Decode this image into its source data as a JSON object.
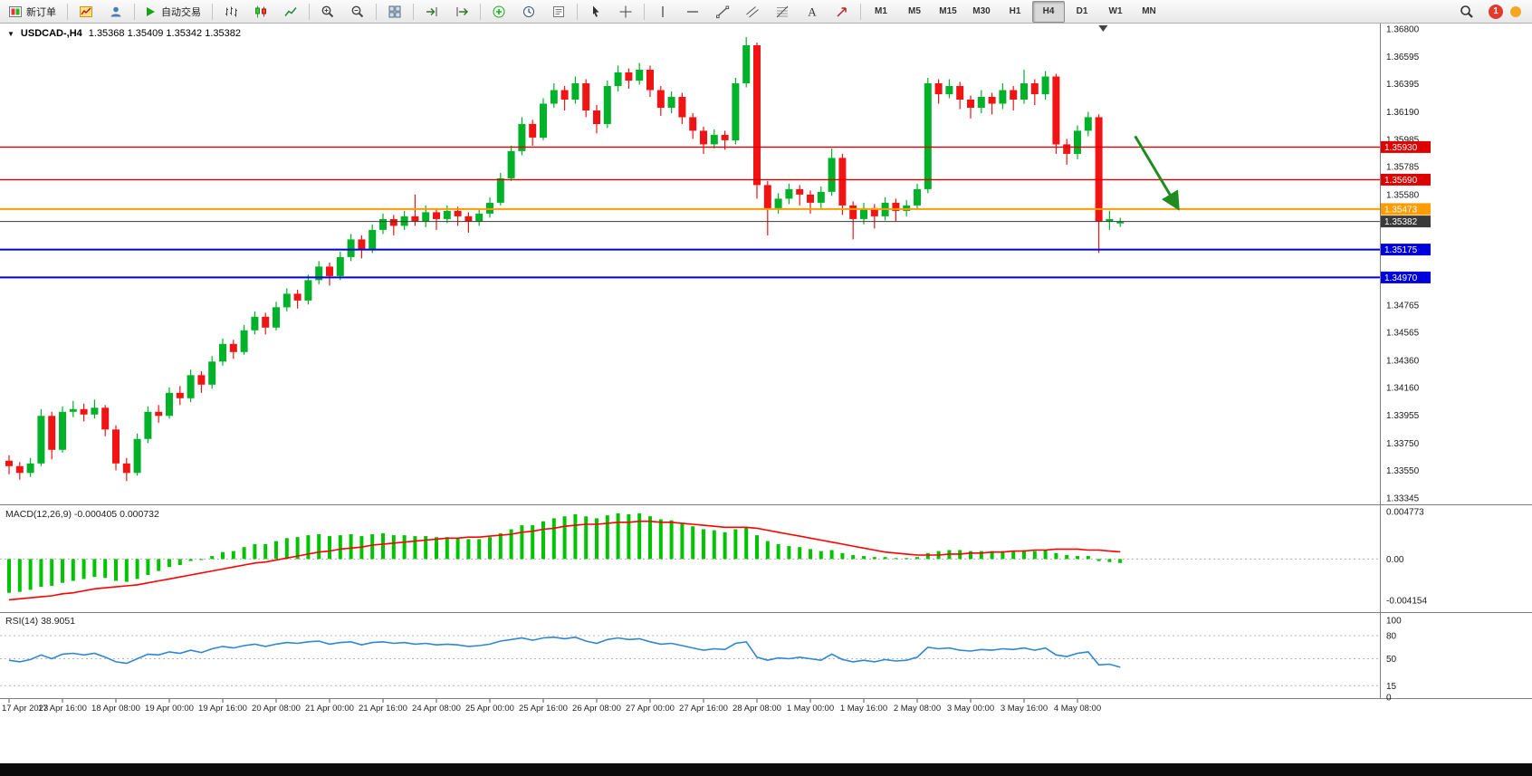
{
  "toolbar": {
    "groups": [
      [
        {
          "name": "new-order-button",
          "icon": "new-order",
          "label": "新订单"
        }
      ],
      [
        {
          "name": "new-chart-button",
          "icon": "new-chart"
        },
        {
          "name": "profiles-button",
          "icon": "profiles"
        }
      ],
      [
        {
          "name": "autotrading-button",
          "icon": "play",
          "label": "自动交易"
        }
      ],
      [
        {
          "name": "bar-chart-mode-button",
          "icon": "bars"
        },
        {
          "name": "candlestick-mode-button",
          "icon": "candles"
        },
        {
          "name": "line-chart-mode-button",
          "icon": "line"
        }
      ],
      [
        {
          "name": "zoom-in-button",
          "icon": "zoom-in"
        },
        {
          "name": "zoom-out-button",
          "icon": "zoom-out"
        }
      ],
      [
        {
          "name": "tile-windows-button",
          "icon": "tile"
        }
      ],
      [
        {
          "name": "auto-scroll-button",
          "icon": "autoscroll"
        },
        {
          "name": "chart-shift-button",
          "icon": "shift"
        }
      ],
      [
        {
          "name": "indicators-button",
          "icon": "indicators"
        },
        {
          "name": "periods-button",
          "icon": "clock"
        },
        {
          "name": "templates-button",
          "icon": "templates"
        }
      ],
      [
        {
          "name": "cursor-button",
          "icon": "cursor"
        },
        {
          "name": "crosshair-button",
          "icon": "crosshair"
        }
      ],
      [
        {
          "name": "vertical-line-button",
          "icon": "vline"
        },
        {
          "name": "horizontal-line-button",
          "icon": "hline"
        },
        {
          "name": "trendline-button",
          "icon": "trendline"
        },
        {
          "name": "channel-button",
          "icon": "channel"
        },
        {
          "name": "fibonacci-button",
          "icon": "fibo"
        },
        {
          "name": "text-tool-button",
          "icon": "text"
        },
        {
          "name": "arrows-tool-button",
          "icon": "arrows"
        }
      ]
    ],
    "timeframes": [
      "M1",
      "M5",
      "M15",
      "M30",
      "H1",
      "H4",
      "D1",
      "W1",
      "MN"
    ],
    "active_timeframe": "H4",
    "notification_count": "1"
  },
  "chart_data": {
    "type": "candlestick",
    "symbol": "USDCAD",
    "period": "H4",
    "title": "USDCAD-,H4",
    "quote_line": "1.35368 1.35409 1.35342 1.35382",
    "quote": {
      "open": "1.35368",
      "high": "1.35409",
      "low": "1.35342",
      "close": "1.35382"
    },
    "candles_unit": "pips over base 1.33 (1 pip = 0.0001)",
    "price_base": 1.33,
    "pip": 0.0001,
    "y_axis": {
      "labels": [
        "1.36800",
        "1.36595",
        "1.36395",
        "1.36190",
        "1.35985",
        "1.35785",
        "1.35580",
        "1.35380",
        "1.35175",
        "1.34970",
        "1.34765",
        "1.34565",
        "1.34360",
        "1.34160",
        "1.33955",
        "1.33750",
        "1.33550",
        "1.33345"
      ]
    },
    "hlines": [
      {
        "name": "resistance-line-1",
        "price": 1.3593,
        "color": "#dd0000",
        "width": 1.4,
        "tag": "1.35930"
      },
      {
        "name": "resistance-line-2",
        "price": 1.3569,
        "color": "#dd0000",
        "width": 1.4,
        "tag": "1.35690"
      },
      {
        "name": "pivot-line",
        "price": 1.35473,
        "color": "#ff9c00",
        "width": 2,
        "tag": "1.35473"
      },
      {
        "name": "bid-price-line",
        "price": 1.35382,
        "color": "#3a3a3a",
        "width": 1,
        "tag": "1.35382"
      },
      {
        "name": "support-line-1",
        "price": 1.35175,
        "color": "#0000dd",
        "width": 2,
        "tag": "1.35175"
      },
      {
        "name": "support-line-2",
        "price": 1.3497,
        "color": "#0000dd",
        "width": 2,
        "tag": "1.34970"
      }
    ],
    "candles_pips": [
      [
        62,
        66,
        52,
        58
      ],
      [
        58,
        61,
        48,
        53
      ],
      [
        53,
        64,
        50,
        60
      ],
      [
        60,
        100,
        58,
        95
      ],
      [
        95,
        98,
        63,
        70
      ],
      [
        70,
        102,
        68,
        98
      ],
      [
        98,
        106,
        94,
        100
      ],
      [
        100,
        104,
        91,
        96
      ],
      [
        96,
        107,
        93,
        101
      ],
      [
        101,
        103,
        80,
        85
      ],
      [
        85,
        88,
        55,
        60
      ],
      [
        60,
        64,
        47,
        53
      ],
      [
        53,
        82,
        51,
        78
      ],
      [
        78,
        102,
        75,
        98
      ],
      [
        98,
        103,
        90,
        95
      ],
      [
        95,
        116,
        93,
        112
      ],
      [
        112,
        117,
        103,
        108
      ],
      [
        108,
        129,
        105,
        125
      ],
      [
        125,
        128,
        112,
        118
      ],
      [
        118,
        139,
        115,
        135
      ],
      [
        135,
        152,
        132,
        148
      ],
      [
        148,
        151,
        137,
        142
      ],
      [
        142,
        162,
        140,
        158
      ],
      [
        158,
        172,
        155,
        168
      ],
      [
        168,
        171,
        155,
        160
      ],
      [
        160,
        179,
        158,
        175
      ],
      [
        175,
        189,
        172,
        185
      ],
      [
        185,
        188,
        174,
        180
      ],
      [
        180,
        199,
        177,
        195
      ],
      [
        195,
        209,
        192,
        205
      ],
      [
        205,
        208,
        191,
        198
      ],
      [
        198,
        216,
        195,
        212
      ],
      [
        212,
        229,
        209,
        225
      ],
      [
        225,
        228,
        211,
        218
      ],
      [
        218,
        236,
        215,
        232
      ],
      [
        232,
        244,
        229,
        240
      ],
      [
        240,
        243,
        228,
        235
      ],
      [
        235,
        246,
        232,
        242
      ],
      [
        242,
        258,
        235,
        238
      ],
      [
        238,
        250,
        234,
        245
      ],
      [
        245,
        248,
        232,
        240
      ],
      [
        240,
        250,
        237,
        246
      ],
      [
        246,
        249,
        235,
        242
      ],
      [
        242,
        245,
        230,
        238
      ],
      [
        238,
        248,
        235,
        244
      ],
      [
        244,
        256,
        241,
        252
      ],
      [
        252,
        274,
        250,
        270
      ],
      [
        270,
        294,
        268,
        290
      ],
      [
        290,
        315,
        287,
        310
      ],
      [
        310,
        313,
        294,
        300
      ],
      [
        300,
        329,
        298,
        325
      ],
      [
        325,
        340,
        322,
        335
      ],
      [
        335,
        338,
        320,
        328
      ],
      [
        328,
        345,
        325,
        340
      ],
      [
        340,
        343,
        315,
        320
      ],
      [
        320,
        324,
        303,
        310
      ],
      [
        310,
        342,
        307,
        338
      ],
      [
        338,
        353,
        334,
        348
      ],
      [
        348,
        351,
        336,
        342
      ],
      [
        342,
        355,
        339,
        350
      ],
      [
        350,
        353,
        330,
        335
      ],
      [
        335,
        338,
        316,
        322
      ],
      [
        322,
        334,
        318,
        330
      ],
      [
        330,
        333,
        310,
        315
      ],
      [
        315,
        318,
        299,
        305
      ],
      [
        305,
        308,
        288,
        295
      ],
      [
        295,
        306,
        292,
        302
      ],
      [
        302,
        305,
        291,
        298
      ],
      [
        298,
        344,
        295,
        340
      ],
      [
        340,
        374,
        337,
        368
      ],
      [
        368,
        370,
        255,
        265
      ],
      [
        265,
        268,
        228,
        248
      ],
      [
        248,
        259,
        244,
        255
      ],
      [
        255,
        266,
        251,
        262
      ],
      [
        262,
        265,
        250,
        258
      ],
      [
        258,
        261,
        244,
        252
      ],
      [
        252,
        264,
        248,
        260
      ],
      [
        260,
        292,
        257,
        285
      ],
      [
        285,
        288,
        243,
        250
      ],
      [
        250,
        253,
        225,
        240
      ],
      [
        240,
        252,
        236,
        248
      ],
      [
        248,
        251,
        233,
        242
      ],
      [
        242,
        256,
        239,
        252
      ],
      [
        252,
        255,
        238,
        246
      ],
      [
        246,
        254,
        242,
        250
      ],
      [
        250,
        266,
        247,
        262
      ],
      [
        262,
        344,
        259,
        340
      ],
      [
        340,
        343,
        325,
        332
      ],
      [
        332,
        343,
        329,
        338
      ],
      [
        338,
        341,
        321,
        328
      ],
      [
        328,
        331,
        314,
        322
      ],
      [
        322,
        335,
        318,
        330
      ],
      [
        330,
        333,
        317,
        325
      ],
      [
        325,
        340,
        321,
        335
      ],
      [
        335,
        338,
        320,
        328
      ],
      [
        328,
        350,
        325,
        340
      ],
      [
        340,
        343,
        324,
        332
      ],
      [
        332,
        349,
        328,
        345
      ],
      [
        345,
        347,
        288,
        295
      ],
      [
        295,
        299,
        280,
        288
      ],
      [
        288,
        309,
        284,
        305
      ],
      [
        305,
        319,
        301,
        315
      ],
      [
        315,
        317,
        215,
        238
      ],
      [
        238,
        246,
        232,
        240
      ],
      [
        236.8,
        240.9,
        234.2,
        238.2
      ]
    ],
    "time_labels": [
      "17 Apr 2023",
      "17 Apr 16:00",
      "18 Apr 08:00",
      "19 Apr 00:00",
      "19 Apr 16:00",
      "20 Apr 08:00",
      "21 Apr 00:00",
      "21 Apr 16:00",
      "24 Apr 08:00",
      "25 Apr 00:00",
      "25 Apr 16:00",
      "26 Apr 08:00",
      "27 Apr 00:00",
      "27 Apr 16:00",
      "28 Apr 08:00",
      "1 May 00:00",
      "1 May 16:00",
      "2 May 08:00",
      "3 May 00:00",
      "3 May 16:00",
      "4 May 08:00"
    ],
    "time_label_step": 5,
    "macd": {
      "label": "MACD(12,26,9)",
      "values_text": "-0.000405 0.000732",
      "axis_labels": [
        "0.004773",
        "0.00",
        "-0.004154"
      ],
      "scale_max": 0.004773,
      "scale_min": -0.004154,
      "unit": 0.001,
      "histogram": [
        -3.4,
        -3.3,
        -3.1,
        -2.8,
        -2.7,
        -2.4,
        -2.2,
        -2.0,
        -1.8,
        -1.9,
        -2.2,
        -2.3,
        -2.0,
        -1.6,
        -1.2,
        -0.8,
        -0.6,
        -0.2,
        -0.1,
        0.3,
        0.7,
        0.8,
        1.2,
        1.5,
        1.5,
        1.8,
        2.1,
        2.2,
        2.4,
        2.5,
        2.3,
        2.4,
        2.5,
        2.3,
        2.5,
        2.6,
        2.4,
        2.4,
        2.3,
        2.3,
        2.2,
        2.2,
        2.1,
        2.0,
        2.0,
        2.2,
        2.6,
        3.0,
        3.4,
        3.4,
        3.8,
        4.1,
        4.3,
        4.5,
        4.3,
        4.1,
        4.4,
        4.6,
        4.5,
        4.6,
        4.3,
        4.0,
        3.9,
        3.6,
        3.3,
        3.0,
        2.9,
        2.7,
        3.0,
        3.2,
        2.4,
        1.8,
        1.5,
        1.3,
        1.2,
        1.0,
        0.8,
        0.9,
        0.6,
        0.4,
        0.3,
        0.2,
        0.2,
        0.1,
        0.1,
        0.2,
        0.6,
        0.8,
        0.9,
        0.9,
        0.8,
        0.8,
        0.8,
        0.8,
        0.8,
        0.9,
        0.8,
        0.9,
        0.6,
        0.4,
        0.3,
        0.3,
        -0.2,
        -0.3,
        -0.4
      ],
      "signal": [
        -4.1,
        -4.0,
        -3.9,
        -3.8,
        -3.7,
        -3.5,
        -3.4,
        -3.2,
        -3.0,
        -2.9,
        -2.8,
        -2.7,
        -2.6,
        -2.4,
        -2.2,
        -2.0,
        -1.8,
        -1.6,
        -1.4,
        -1.2,
        -1.0,
        -0.8,
        -0.6,
        -0.4,
        -0.3,
        -0.1,
        0.1,
        0.3,
        0.5,
        0.7,
        0.8,
        1.0,
        1.1,
        1.2,
        1.4,
        1.5,
        1.6,
        1.7,
        1.8,
        1.9,
        2.0,
        2.1,
        2.1,
        2.2,
        2.2,
        2.3,
        2.4,
        2.5,
        2.7,
        2.8,
        3.0,
        3.1,
        3.3,
        3.4,
        3.5,
        3.5,
        3.6,
        3.7,
        3.7,
        3.8,
        3.8,
        3.7,
        3.7,
        3.6,
        3.5,
        3.4,
        3.3,
        3.2,
        3.2,
        3.2,
        3.1,
        2.9,
        2.7,
        2.5,
        2.3,
        2.1,
        1.9,
        1.7,
        1.5,
        1.3,
        1.1,
        0.9,
        0.7,
        0.6,
        0.5,
        0.4,
        0.4,
        0.4,
        0.5,
        0.5,
        0.6,
        0.6,
        0.7,
        0.7,
        0.8,
        0.8,
        0.9,
        0.9,
        1.0,
        1.0,
        1.0,
        0.9,
        0.9,
        0.8,
        0.73
      ]
    },
    "rsi": {
      "label": "RSI(14)",
      "value_text": "38.9051",
      "axis_labels": [
        "100",
        "80",
        "50",
        "15",
        "0"
      ],
      "levels": [
        80,
        50,
        15
      ],
      "values": [
        48,
        46,
        49,
        55,
        50,
        56,
        57,
        55,
        57,
        52,
        46,
        44,
        50,
        56,
        55,
        59,
        57,
        61,
        58,
        63,
        66,
        64,
        67,
        69,
        66,
        69,
        71,
        70,
        72,
        73,
        69,
        71,
        72,
        68,
        71,
        72,
        70,
        71,
        69,
        70,
        68,
        69,
        68,
        66,
        67,
        69,
        73,
        75,
        77,
        74,
        77,
        78,
        76,
        78,
        73,
        70,
        75,
        77,
        75,
        76,
        72,
        69,
        70,
        67,
        64,
        61,
        63,
        62,
        70,
        72,
        52,
        48,
        51,
        50,
        52,
        50,
        48,
        56,
        49,
        46,
        48,
        46,
        49,
        47,
        48,
        52,
        65,
        63,
        64,
        61,
        60,
        62,
        61,
        63,
        62,
        64,
        61,
        64,
        55,
        53,
        57,
        59,
        42,
        43,
        38.9
      ]
    },
    "annotations": {
      "arrow": {
        "i1": 105.4,
        "p1": 1.3601,
        "i2": 109.3,
        "p2": 1.35495,
        "color": "#1e8c1e"
      }
    },
    "shift_marker_index": 102.4
  }
}
